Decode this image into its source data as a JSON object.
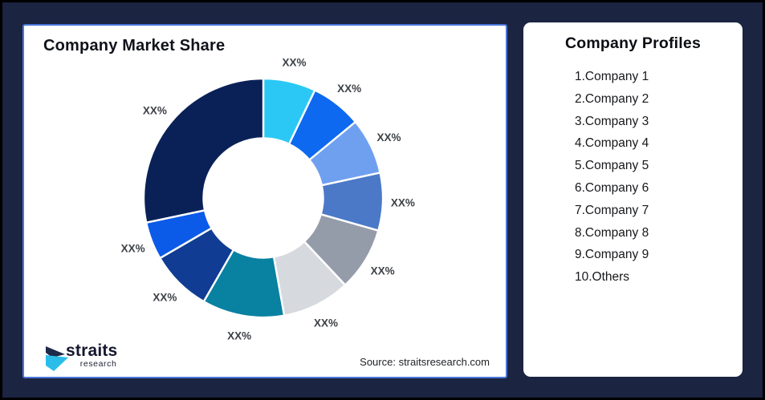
{
  "frame": {
    "background": "#1b2441",
    "border_color": "#000000"
  },
  "market_share_card": {
    "title": "Company Market Share",
    "source": "Source: straitsresearch.com",
    "border_color": "#4a76da",
    "background": "#ffffff"
  },
  "logo": {
    "brand": "straits",
    "brand_sub": "research",
    "mark_navy": "#1e2a4a",
    "mark_cyan": "#2bbde9"
  },
  "profiles_card": {
    "title": "Company Profiles",
    "items": [
      "1.Company 1",
      "2.Company 2",
      "3.Company 3",
      "4.Company 4",
      "5.Company 5",
      "6.Company 6",
      "7.Company 7",
      "8.Company 8",
      "9.Company 9",
      "10.Others"
    ]
  },
  "chart_data": {
    "type": "pie",
    "subtype": "donut",
    "title": "Company Market Share",
    "start_angle_deg": 0,
    "direction": "clockwise",
    "inner_radius_ratio": 0.5,
    "legend": "none",
    "label_text_color": "#3e4247",
    "gap_color": "#ffffff",
    "segments": [
      {
        "name": "Company 1",
        "label": "XX%",
        "value_pct": 7.1,
        "color": "#2bc8f5"
      },
      {
        "name": "Company 2",
        "label": "XX%",
        "value_pct": 6.9,
        "color": "#0d69ef"
      },
      {
        "name": "Company 3",
        "label": "XX%",
        "value_pct": 7.6,
        "color": "#6fa0f0"
      },
      {
        "name": "Company 4",
        "label": "XX%",
        "value_pct": 7.8,
        "color": "#4b79c8"
      },
      {
        "name": "Company 5",
        "label": "XX%",
        "value_pct": 8.6,
        "color": "#959ca9"
      },
      {
        "name": "Company 6",
        "label": "XX%",
        "value_pct": 9.2,
        "color": "#d6d9de"
      },
      {
        "name": "Company 7",
        "label": "XX%",
        "value_pct": 11.1,
        "color": "#0981a1"
      },
      {
        "name": "Company 8",
        "label": "XX%",
        "value_pct": 8.3,
        "color": "#103d93"
      },
      {
        "name": "Company 9",
        "label": "XX%",
        "value_pct": 5.1,
        "color": "#0c5ae8"
      },
      {
        "name": "Others",
        "label": "XX%",
        "value_pct": 28.3,
        "color": "#0a2158"
      }
    ]
  }
}
